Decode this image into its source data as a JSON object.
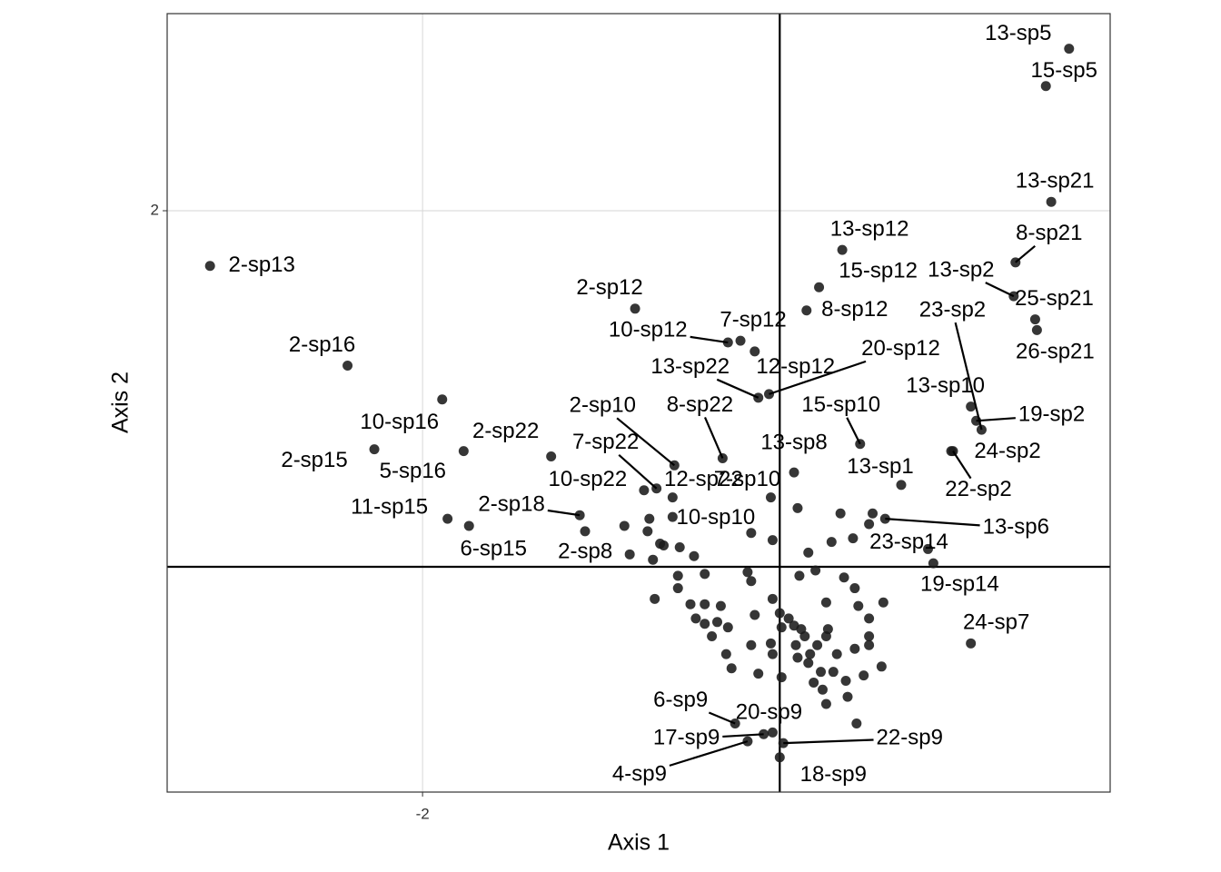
{
  "chart_data": {
    "type": "scatter",
    "x_label": "Axis 1",
    "y_label": "Axis 2",
    "xlim": [
      -3.43,
      1.85
    ],
    "ylim": [
      -1.265,
      3.107
    ],
    "xticks": [
      -2
    ],
    "yticks": [
      2
    ],
    "grid": true,
    "reference_lines": {
      "x": 0,
      "y": 0
    },
    "series": [
      {
        "color": "#1a1a1a",
        "x": [
          1.62,
          1.49,
          1.52,
          1.32,
          1.31,
          1.43,
          1.44,
          -3.19,
          -2.42,
          -1.89,
          -2.27,
          -1.77,
          -1.28,
          -1.86,
          -1.74,
          -1.12,
          -0.84,
          -0.81,
          -0.29,
          -0.22,
          -0.12,
          -0.14,
          -0.06,
          0.35,
          0.22,
          0.15,
          -0.59,
          -0.32,
          -0.69,
          -0.76,
          -0.6,
          -0.05,
          -0.16,
          0.08,
          0.45,
          1.07,
          1.1,
          1.13,
          0.96,
          0.97,
          0.68,
          0.59,
          0.83,
          0.86,
          1.07,
          -0.25,
          -0.04,
          -0.09,
          0.02,
          -0.18,
          0.0,
          0.1,
          -0.04,
          0.34,
          0.5,
          0.29,
          0.41,
          0.16,
          0.11,
          0.2,
          0.36,
          0.42,
          0.26,
          0.58,
          0.44,
          0.5,
          0.5,
          0.5,
          0.42,
          0.57,
          0.47,
          0.37,
          0.38,
          0.43,
          0.26,
          0.24,
          0.19,
          0.23,
          0.16,
          0.1,
          0.21,
          0.14,
          0.08,
          0.01,
          -0.05,
          -0.04,
          0.01,
          -0.12,
          -0.16,
          -0.14,
          -0.16,
          -0.18,
          -0.33,
          -0.29,
          -0.35,
          -0.42,
          -0.5,
          -0.47,
          -0.38,
          -0.3,
          -0.27,
          -0.57,
          -0.42,
          -0.57,
          -0.7,
          -0.71,
          -0.65,
          -0.56,
          -0.48,
          -0.74,
          -0.87,
          -0.73,
          -1.09,
          -0.6,
          -0.67,
          -0.04,
          0.05,
          0.12,
          0.17,
          0.26,
          0.32,
          0.27,
          0.52,
          0.0,
          0.09,
          0.3,
          -0.42
        ],
        "values": [
          2.91,
          2.7,
          2.05,
          1.71,
          1.52,
          1.39,
          1.33,
          1.69,
          1.13,
          0.94,
          0.66,
          0.65,
          0.62,
          0.27,
          0.23,
          0.29,
          0.07,
          1.45,
          1.26,
          1.27,
          0.95,
          1.21,
          0.97,
          1.78,
          1.57,
          1.44,
          0.57,
          0.61,
          0.44,
          0.43,
          0.39,
          0.39,
          0.19,
          0.53,
          0.69,
          0.9,
          0.82,
          0.77,
          0.65,
          0.65,
          0.46,
          0.27,
          0.1,
          0.02,
          -0.43,
          -0.88,
          -0.93,
          -0.94,
          -0.99,
          -0.98,
          -1.07,
          0.33,
          0.15,
          0.3,
          0.24,
          0.14,
          0.16,
          0.08,
          -0.05,
          -0.02,
          -0.06,
          -0.12,
          -0.2,
          -0.2,
          -0.22,
          -0.29,
          -0.39,
          -0.44,
          -0.46,
          -0.56,
          -0.61,
          -0.64,
          -0.73,
          -0.88,
          -0.77,
          -0.69,
          -0.65,
          -0.59,
          -0.54,
          -0.51,
          -0.44,
          -0.39,
          -0.33,
          -0.34,
          -0.43,
          -0.49,
          -0.62,
          -0.6,
          -0.44,
          -0.27,
          -0.08,
          -0.03,
          -0.22,
          -0.34,
          -0.31,
          -0.21,
          -0.21,
          -0.29,
          -0.39,
          -0.49,
          -0.57,
          -0.05,
          -0.04,
          -0.12,
          -0.18,
          0.04,
          0.12,
          0.11,
          0.06,
          0.2,
          0.23,
          0.27,
          0.2,
          0.28,
          0.13,
          -0.18,
          -0.29,
          -0.35,
          -0.49,
          -0.39,
          -0.49,
          -0.35,
          0.3,
          -0.26,
          -0.44,
          -0.59,
          -0.32
        ],
        "labels": [
          "13-sp5",
          "15-sp5",
          "13-sp21",
          "8-sp21",
          "13-sp2",
          "25-sp21",
          "26-sp21",
          "2-sp13",
          "2-sp16",
          "10-sp16",
          "2-sp15",
          "5-sp16",
          "2-sp22",
          "11-sp15",
          "6-sp15",
          "2-sp18",
          "2-sp8",
          "2-sp12",
          "10-sp12",
          "7-sp12",
          "13-sp22",
          "12-sp12",
          "20-sp12",
          "13-sp12",
          "15-sp12",
          "8-sp12",
          "2-sp10",
          "8-sp22",
          "7-sp22",
          "10-sp22",
          "12-sp22",
          "7-sp10",
          "10-sp10",
          "13-sp8",
          "15-sp10",
          "13-sp10",
          "19-sp2",
          "23-sp2",
          "24-sp2",
          "22-sp2",
          "13-sp1",
          "13-sp6",
          "23-sp14",
          "19-sp14",
          "24-sp7",
          "6-sp9",
          "20-sp9",
          "17-sp9",
          "22-sp9",
          "4-sp9",
          "18-sp9"
        ]
      }
    ]
  }
}
